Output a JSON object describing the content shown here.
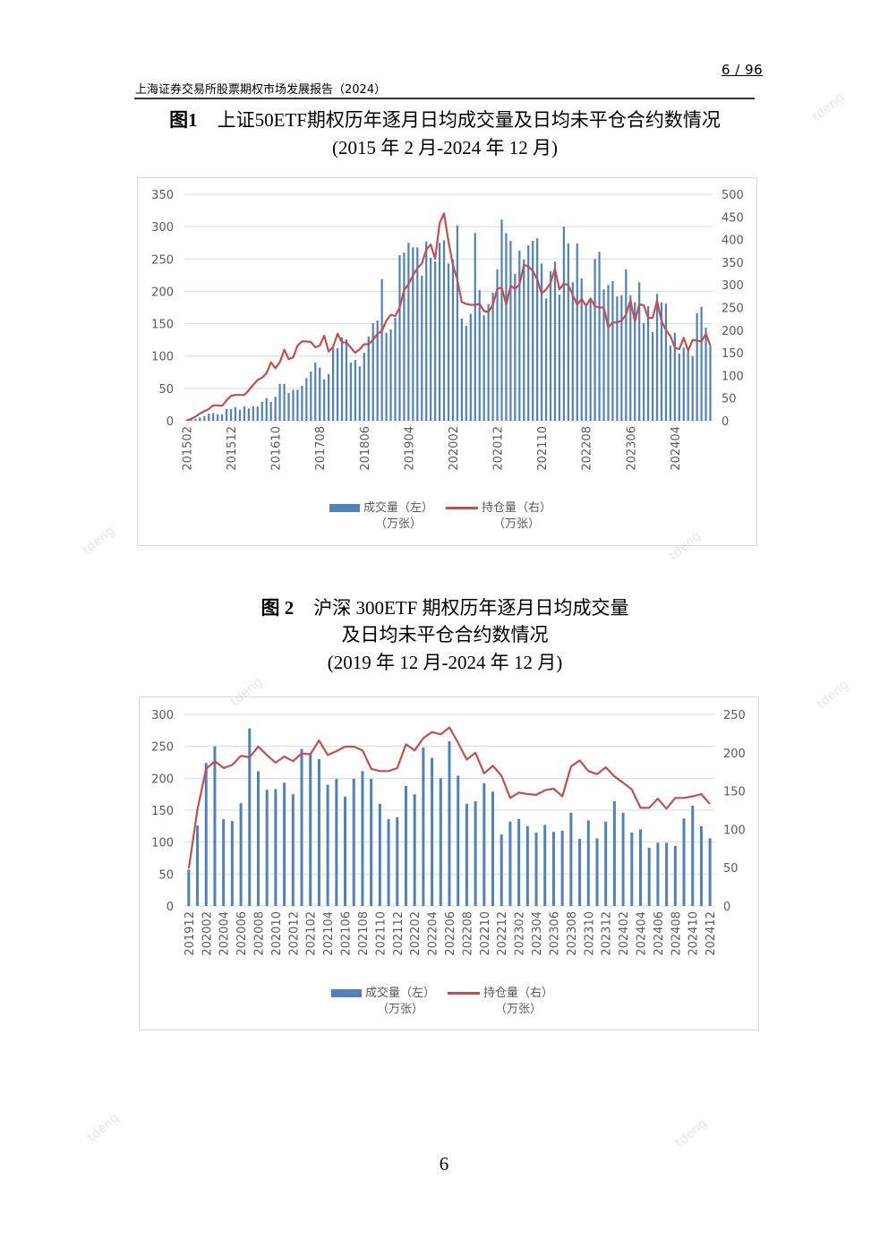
{
  "header": {
    "page_indicator": "6 / 96",
    "report_title": "上海证券交易所股票期权市场发展报告（2024）"
  },
  "watermark": "tdeng",
  "figure1": {
    "label": "图1",
    "title": "上证50ETF期权历年逐月日均成交量及日均未平仓合约数情况",
    "subtitle": "(2015 年 2 月-2024 年 12 月)"
  },
  "figure2": {
    "label": "图 2",
    "title": "沪深 300ETF 期权历年逐月日均成交量",
    "title2": "及日均未平仓合约数情况",
    "subtitle": "(2019 年 12 月-2024 年 12 月)"
  },
  "page_number": "6",
  "colors": {
    "bar": "#4f81bd",
    "line": "#c0504d",
    "grid": "#d9d9d9"
  },
  "chart_data": [
    {
      "type": "bar+line",
      "start": "201502",
      "end": "202412",
      "x_tick_labels": [
        "201502",
        "201512",
        "201610",
        "201708",
        "201806",
        "201904",
        "202002",
        "202012",
        "202110",
        "202208",
        "202306",
        "202404"
      ],
      "x_tick_every": 10,
      "y_left": {
        "ticks": [
          "0",
          "50",
          "100",
          "150",
          "200",
          "250",
          "300",
          "350"
        ],
        "lim": [
          0,
          350
        ]
      },
      "y_right": {
        "ticks": [
          "0",
          "50",
          "100",
          "150",
          "200",
          "250",
          "300",
          "350",
          "400",
          "450",
          "500"
        ],
        "lim": [
          0,
          500
        ]
      },
      "legend": [
        {
          "name": "成交量（左）",
          "unit": "（万张）"
        },
        {
          "name": "持仓量（右）",
          "unit": "（万张）"
        }
      ],
      "series": [
        {
          "name": "成交量（左）",
          "axis": "left",
          "type": "bar",
          "values": [
            1,
            2,
            3,
            5,
            7,
            11,
            12,
            10,
            10,
            18,
            18,
            21,
            17,
            22,
            19,
            22,
            22,
            29,
            35,
            29,
            37,
            57,
            57,
            43,
            48,
            48,
            54,
            66,
            76,
            90,
            82,
            64,
            72,
            113,
            112,
            129,
            126,
            90,
            94,
            84,
            105,
            130,
            151,
            155,
            219,
            136,
            141,
            159,
            256,
            260,
            275,
            268,
            268,
            224,
            277,
            252,
            246,
            275,
            279,
            243,
            249,
            302,
            158,
            147,
            165,
            290,
            202,
            163,
            180,
            198,
            234,
            311,
            290,
            278,
            227,
            263,
            249,
            271,
            278,
            282,
            243,
            189,
            231,
            246,
            195,
            300,
            274,
            214,
            274,
            220,
            178,
            187,
            250,
            261,
            203,
            210,
            216,
            192,
            194,
            234,
            194,
            183,
            214,
            151,
            177,
            137,
            196,
            183,
            181,
            116,
            136,
            104,
            113,
            113,
            100,
            166,
            176,
            144,
            116
          ]
        },
        {
          "name": "持仓量（右）",
          "axis": "right",
          "type": "line",
          "values": [
            1,
            4,
            9,
            16,
            21,
            26,
            34,
            34,
            33,
            45,
            55,
            57,
            57,
            57,
            67,
            79,
            90,
            95,
            105,
            129,
            116,
            129,
            157,
            136,
            140,
            166,
            175,
            175,
            174,
            162,
            166,
            188,
            153,
            163,
            192,
            173,
            173,
            161,
            150,
            158,
            169,
            169,
            179,
            192,
            198,
            221,
            234,
            231,
            250,
            288,
            302,
            321,
            337,
            347,
            378,
            389,
            358,
            436,
            458,
            396,
            344,
            311,
            262,
            258,
            256,
            256,
            258,
            242,
            240,
            256,
            291,
            294,
            257,
            298,
            291,
            301,
            344,
            341,
            331,
            312,
            281,
            290,
            304,
            336,
            290,
            303,
            299,
            278,
            256,
            269,
            254,
            270,
            253,
            250,
            250,
            206,
            217,
            217,
            221,
            234,
            266,
            219,
            257,
            255,
            227,
            227,
            265,
            220,
            200,
            187,
            161,
            158,
            183,
            155,
            178,
            177,
            175,
            192,
            166
          ]
        }
      ]
    },
    {
      "type": "bar+line",
      "start": "201912",
      "end": "202412",
      "x_tick_labels": [
        "201912",
        "202002",
        "202004",
        "202006",
        "202008",
        "202010",
        "202012",
        "202102",
        "202104",
        "202106",
        "202108",
        "202110",
        "202112",
        "202202",
        "202204",
        "202206",
        "202208",
        "202210",
        "202212",
        "202302",
        "202304",
        "202306",
        "202308",
        "202310",
        "202312",
        "202402",
        "202404",
        "202406",
        "202408",
        "202410",
        "202412"
      ],
      "x_tick_every": 2,
      "y_left": {
        "ticks": [
          "0",
          "50",
          "100",
          "150",
          "200",
          "250",
          "300"
        ],
        "lim": [
          0,
          300
        ]
      },
      "y_right": {
        "ticks": [
          "0",
          "50",
          "100",
          "150",
          "200",
          "250"
        ],
        "lim": [
          0,
          250
        ]
      },
      "legend": [
        {
          "name": "成交量（左）",
          "unit": "（万张）"
        },
        {
          "name": "持仓量（右）",
          "unit": "（万张）"
        }
      ],
      "series": [
        {
          "name": "成交量（左）",
          "axis": "left",
          "type": "bar",
          "values": [
            57,
            126,
            224,
            250,
            136,
            133,
            161,
            278,
            211,
            182,
            183,
            193,
            175,
            246,
            238,
            230,
            190,
            199,
            171,
            199,
            211,
            199,
            160,
            136,
            139,
            188,
            175,
            248,
            232,
            200,
            258,
            204,
            160,
            164,
            192,
            179,
            112,
            132,
            136,
            125,
            115,
            127,
            116,
            118,
            146,
            105,
            134,
            106,
            132,
            164,
            146,
            115,
            120,
            91,
            99,
            99,
            94,
            137,
            157,
            125,
            106
          ]
        },
        {
          "name": "持仓量（右）",
          "axis": "right",
          "type": "line",
          "values": [
            49,
            126,
            179,
            189,
            180,
            184,
            196,
            194,
            208,
            197,
            187,
            195,
            189,
            199,
            198,
            216,
            197,
            202,
            208,
            208,
            203,
            179,
            176,
            176,
            180,
            211,
            203,
            219,
            227,
            224,
            233,
            213,
            191,
            200,
            173,
            183,
            170,
            141,
            148,
            146,
            145,
            151,
            153,
            143,
            182,
            190,
            176,
            172,
            181,
            169,
            161,
            152,
            128,
            128,
            140,
            127,
            141,
            141,
            143,
            146,
            133
          ]
        }
      ]
    }
  ]
}
